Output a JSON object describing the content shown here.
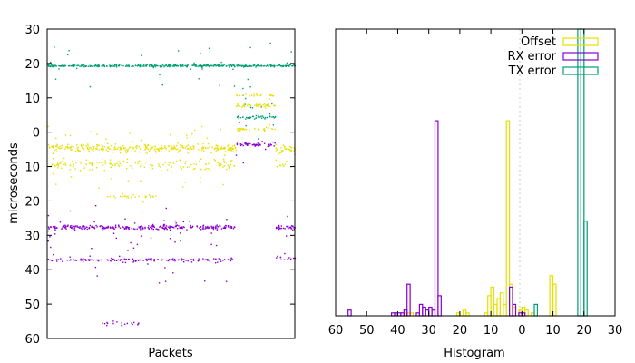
{
  "chart_data": [
    {
      "type": "scatter",
      "xlabel": "Packets",
      "ylabel": "microseconds",
      "ylim": [
        60,
        -30
      ],
      "ytick_labels": [
        "30",
        "20",
        "10",
        "0",
        "10",
        "20",
        "30",
        "40",
        "50",
        "60"
      ],
      "yticks": [
        -30,
        -20,
        -10,
        0,
        10,
        20,
        30,
        40,
        50,
        60
      ],
      "x_range": [
        0,
        1
      ],
      "colors": {
        "offset": "#e5e000",
        "rx": "#8800d0",
        "tx": "#009e73"
      },
      "series": [
        {
          "name": "TX error",
          "color": "#009e73",
          "segments": [
            {
              "x": [
                0,
                0.78
              ],
              "y": -19.5,
              "spread": 0.3,
              "density": 1.0
            },
            {
              "x": [
                0.78,
                0.92
              ],
              "y": -19.5,
              "spread": 0.3,
              "density": 1.0
            },
            {
              "x": [
                0.92,
                1
              ],
              "y": -19.5,
              "spread": 0.3,
              "density": 1.0
            },
            {
              "x": [
                0.76,
                0.92
              ],
              "y": -4.5,
              "spread": 0.4,
              "density": 0.7
            },
            {
              "x": [
                0.77,
                0.91
              ],
              "y": -11,
              "spread": 6,
              "density": 0.15
            }
          ]
        },
        {
          "name": "Offset",
          "color": "#e5e000",
          "segments": [
            {
              "x": [
                0,
                0.76
              ],
              "y": 4.5,
              "spread": 1.2,
              "density": 1.0
            },
            {
              "x": [
                0.92,
                1
              ],
              "y": 4.5,
              "spread": 1.2,
              "density": 1.0
            },
            {
              "x": [
                0,
                0.76
              ],
              "y": 9.5,
              "spread": 1.5,
              "density": 0.5
            },
            {
              "x": [
                0.92,
                1
              ],
              "y": 9.5,
              "spread": 1.5,
              "density": 0.4
            },
            {
              "x": [
                0.22,
                0.45
              ],
              "y": 18.5,
              "spread": 0.5,
              "density": 0.3
            },
            {
              "x": [
                0.76,
                0.92
              ],
              "y": -8,
              "spread": 0.5,
              "density": 0.7
            },
            {
              "x": [
                0.76,
                0.92
              ],
              "y": -1,
              "spread": 0.5,
              "density": 0.5
            },
            {
              "x": [
                0.76,
                0.92
              ],
              "y": -11,
              "spread": 0.5,
              "density": 0.3
            }
          ]
        },
        {
          "name": "RX error",
          "color": "#8800d0",
          "segments": [
            {
              "x": [
                0,
                0.2
              ],
              "y": 27.5,
              "spread": 0.6,
              "density": 1.0
            },
            {
              "x": [
                0.21,
                0.76
              ],
              "y": 27.5,
              "spread": 0.6,
              "density": 1.0
            },
            {
              "x": [
                0.92,
                1
              ],
              "y": 27.5,
              "spread": 0.6,
              "density": 1.0
            },
            {
              "x": [
                0,
                0.76
              ],
              "y": 37,
              "spread": 0.5,
              "density": 0.5
            },
            {
              "x": [
                0.92,
                1
              ],
              "y": 36.5,
              "spread": 0.5,
              "density": 0.4
            },
            {
              "x": [
                0.76,
                0.92
              ],
              "y": 3.5,
              "spread": 0.5,
              "density": 0.8
            },
            {
              "x": [
                0.22,
                0.37
              ],
              "y": 55.5,
              "spread": 0.5,
              "density": 0.3
            }
          ]
        }
      ]
    },
    {
      "type": "histogram",
      "xlabel": "Histogram",
      "xlim": [
        60,
        -30
      ],
      "xticks": [
        60,
        50,
        40,
        30,
        20,
        10,
        0,
        -10,
        -20,
        -30
      ],
      "xtick_labels": [
        "60",
        "50",
        "40",
        "30",
        "20",
        "10",
        "0",
        "10",
        "20",
        "30"
      ],
      "ylim": [
        0,
        1
      ],
      "legend_position": "top-right",
      "series": [
        {
          "name": "Offset",
          "color": "#e5e000",
          "bins": [
            [
              -10.5,
              0.11
            ],
            [
              -9.5,
              0.14
            ],
            [
              -3.5,
              0.01
            ],
            [
              -1.5,
              0.02
            ],
            [
              -0.5,
              0.03
            ],
            [
              0.5,
              0.02
            ],
            [
              2.5,
              0.03
            ],
            [
              3.5,
              0.11
            ],
            [
              4.5,
              0.68
            ],
            [
              5.5,
              0.04
            ],
            [
              6.5,
              0.08
            ],
            [
              7.5,
              0.06
            ],
            [
              8.5,
              0.04
            ],
            [
              9.5,
              0.1
            ],
            [
              10.5,
              0.07
            ],
            [
              11.5,
              0.01
            ],
            [
              17.5,
              0.01
            ],
            [
              18.5,
              0.02
            ],
            [
              20.5,
              0.01
            ],
            [
              35.5,
              0.01
            ],
            [
              36.5,
              0.01
            ],
            [
              37.5,
              0.01
            ]
          ]
        },
        {
          "name": "RX error",
          "color": "#8800d0",
          "bins": [
            [
              -0.5,
              0.01
            ],
            [
              0.5,
              0.01
            ],
            [
              2.5,
              0.04
            ],
            [
              3.5,
              0.1
            ],
            [
              26.5,
              0.07
            ],
            [
              27.5,
              0.68
            ],
            [
              28.5,
              0.02
            ],
            [
              29.5,
              0.03
            ],
            [
              30.5,
              0.02
            ],
            [
              31.5,
              0.03
            ],
            [
              32.5,
              0.04
            ],
            [
              33.5,
              0.01
            ],
            [
              36.5,
              0.11
            ],
            [
              37.5,
              0.02
            ],
            [
              38.5,
              0.01
            ],
            [
              39.5,
              0.01
            ],
            [
              40.5,
              0.01
            ],
            [
              41.5,
              0.01
            ],
            [
              55.5,
              0.02
            ]
          ]
        },
        {
          "name": "TX error",
          "color": "#009e73",
          "bins": [
            [
              -4.5,
              0.04
            ],
            [
              -18.5,
              1.0
            ],
            [
              -19.5,
              1.0
            ],
            [
              -20.5,
              0.33
            ]
          ]
        }
      ]
    }
  ]
}
